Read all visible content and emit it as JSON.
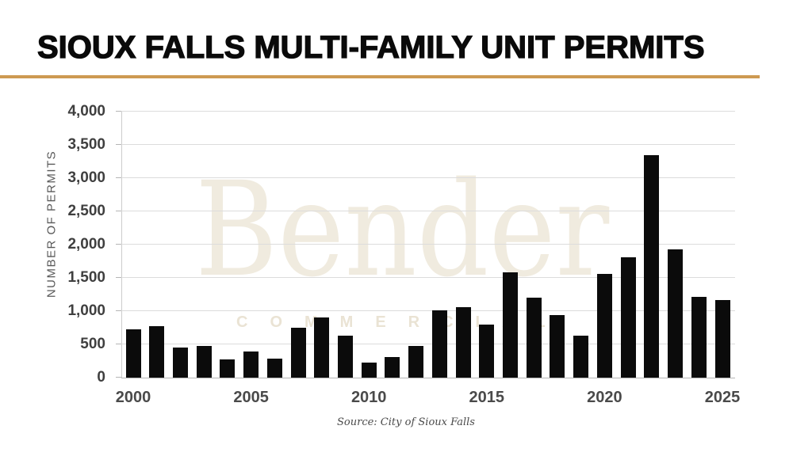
{
  "header": {
    "title": "SIOUX FALLS MULTI-FAMILY UNIT PERMITS"
  },
  "chart_data": {
    "type": "bar",
    "title": "SIOUX FALLS MULTI-FAMILY UNIT PERMITS",
    "xlabel": "",
    "ylabel": "NUMBER OF PERMITS",
    "ylim": [
      0,
      4000
    ],
    "ytick_interval": 500,
    "ytick_labels": [
      "0",
      "500",
      "1,000",
      "1,500",
      "2,000",
      "2,500",
      "3,000",
      "3,500",
      "4,000"
    ],
    "xtick_labels": [
      "2000",
      "2005",
      "2010",
      "2015",
      "2020",
      "2025"
    ],
    "grid": "horizontal",
    "legend": "none",
    "categories": [
      2000,
      2001,
      2002,
      2003,
      2004,
      2005,
      2006,
      2007,
      2008,
      2009,
      2010,
      2011,
      2012,
      2013,
      2014,
      2015,
      2016,
      2017,
      2018,
      2019,
      2020,
      2021,
      2022,
      2023,
      2024,
      2025
    ],
    "values": [
      725,
      775,
      450,
      475,
      275,
      390,
      280,
      745,
      910,
      630,
      230,
      305,
      480,
      1015,
      1065,
      800,
      1585,
      1205,
      935,
      630,
      1560,
      1815,
      3340,
      1930,
      1215,
      1165
    ]
  },
  "watermark": {
    "line1": "Bender",
    "line2": "COMMERCIAL"
  },
  "footer": {
    "source": "Source: City of Sioux Falls"
  },
  "colors": {
    "accent_rule": "#CD9A52",
    "bar": "#0b0b0b",
    "watermark": "#f0ebdf",
    "gridline": "#dcdcdc"
  }
}
